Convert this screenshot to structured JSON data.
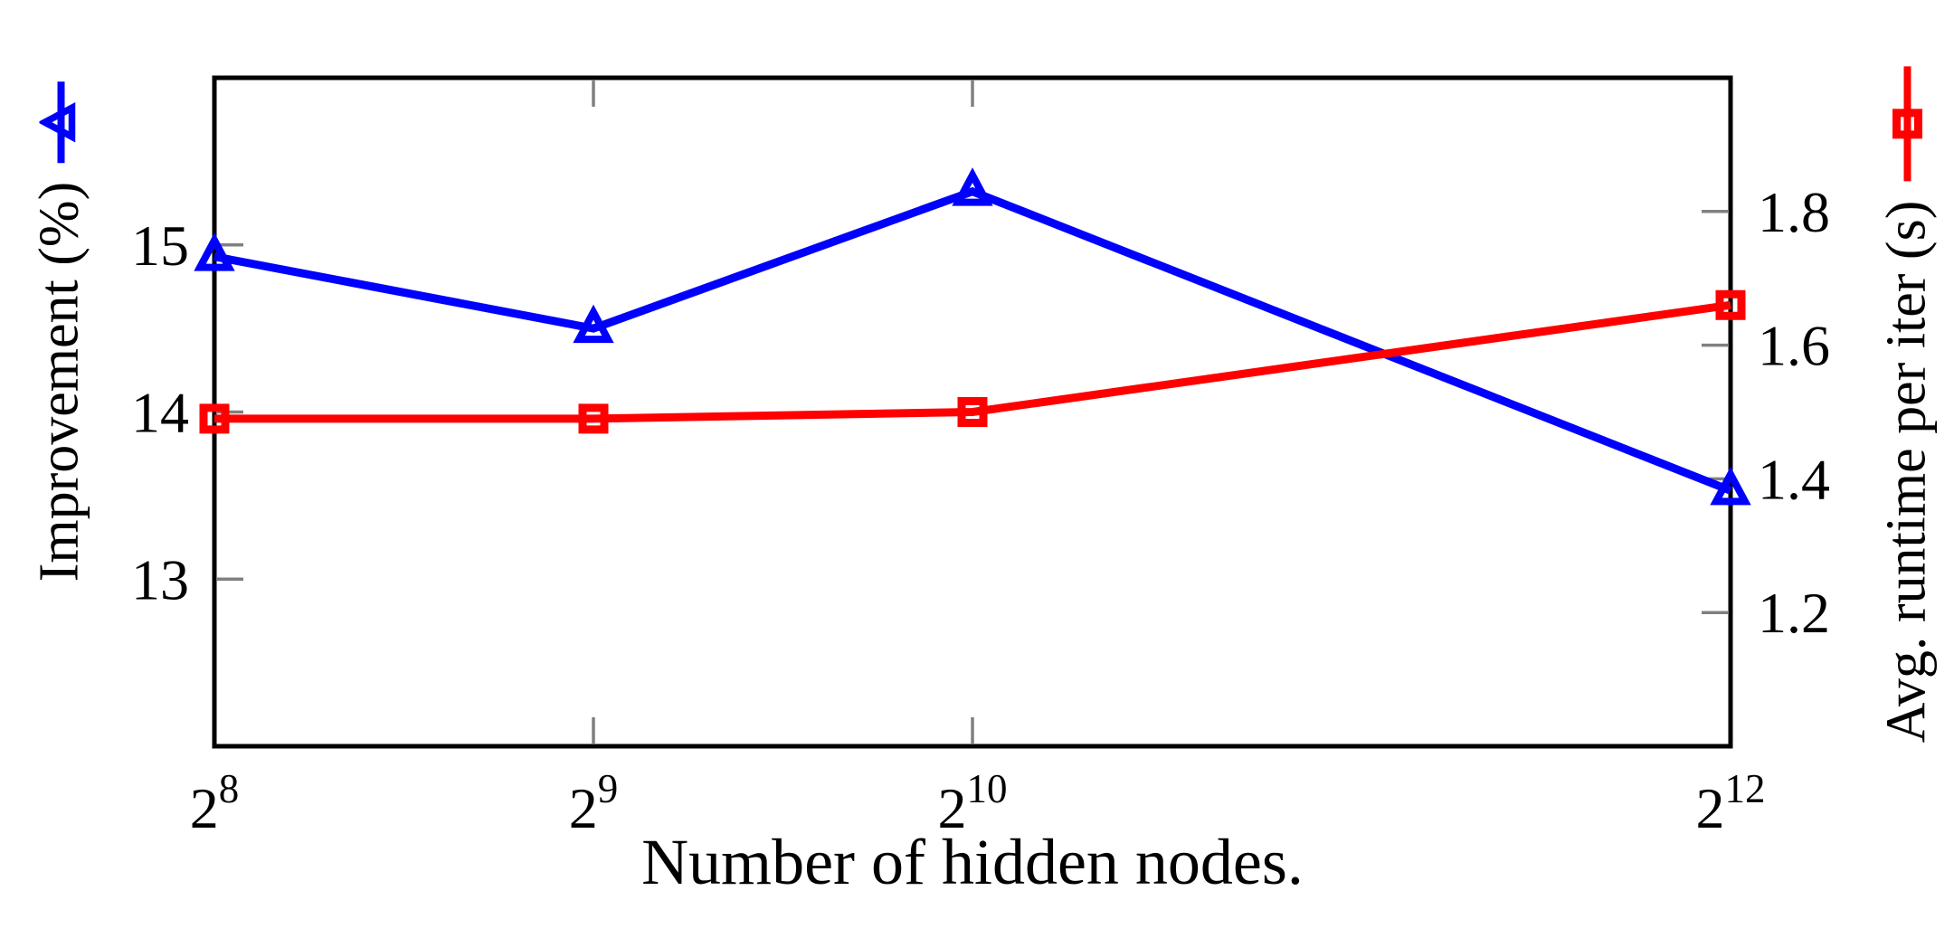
{
  "figure": {
    "background_color": "#ffffff",
    "frame_color": "#000000",
    "tick_color": "#808080"
  },
  "chart_data": {
    "type": "line",
    "title": "",
    "grid": false,
    "legend_position": "embedded-in-axis-labels",
    "x_axis": {
      "label": "Number of hidden nodes.",
      "scale": "log2",
      "tick_base": "2",
      "tick_exponents": [
        8,
        9,
        10,
        12
      ],
      "tick_labels": [
        "2^8",
        "2^9",
        "2^10",
        "2^12"
      ],
      "range_exponents": [
        8,
        12
      ]
    },
    "left_y_axis": {
      "label": "Improvement (%)",
      "ticks": [
        13,
        14,
        15
      ],
      "range": [
        12,
        16
      ]
    },
    "right_y_axis": {
      "label": "Avg. runtime per iter (s)",
      "ticks": [
        1.2,
        1.4,
        1.6,
        1.8
      ],
      "range": [
        1.0,
        2.0
      ]
    },
    "series": [
      {
        "name": "Improvement (%)",
        "axis": "left",
        "color": "#0000ff",
        "marker": "triangle",
        "x_exponents": [
          8,
          9,
          10,
          12
        ],
        "values": [
          14.93,
          14.5,
          15.32,
          13.53
        ]
      },
      {
        "name": "Avg. runtime per iter (s)",
        "axis": "right",
        "color": "#ff0000",
        "marker": "square",
        "x_exponents": [
          8,
          9,
          10,
          12
        ],
        "values": [
          1.49,
          1.49,
          1.5,
          1.66
        ]
      }
    ]
  }
}
